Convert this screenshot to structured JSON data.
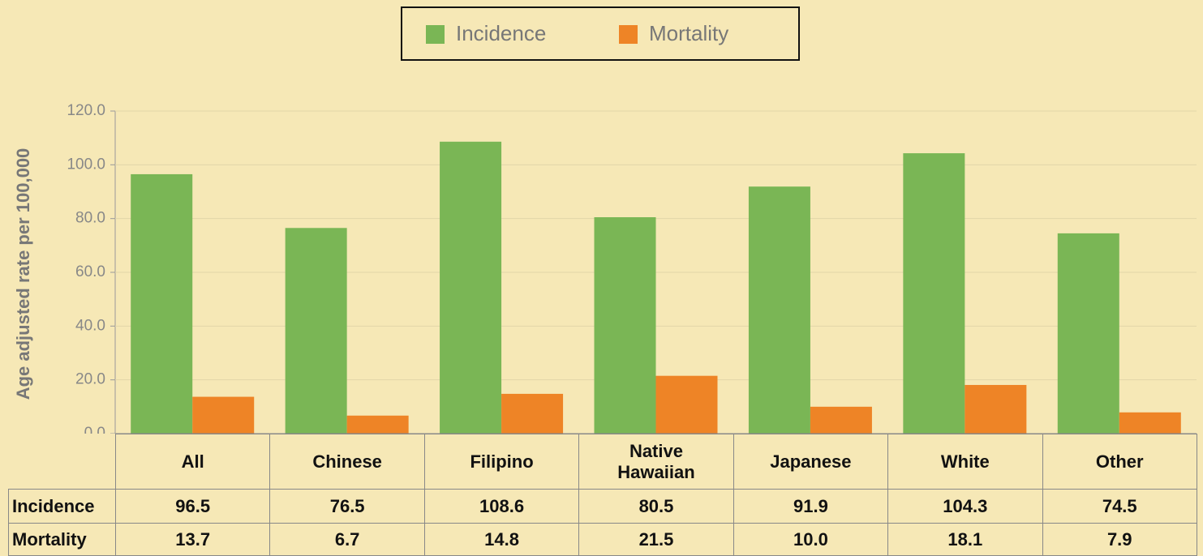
{
  "chart_data": {
    "type": "bar",
    "ylabel": "Age adjusted rate per 100,000",
    "categories": [
      "All",
      "Chinese",
      "Filipino",
      "Native Hawaiian",
      "Japanese",
      "White",
      "Other"
    ],
    "series": [
      {
        "name": "Incidence",
        "color": "#7ab655",
        "values": [
          96.5,
          76.5,
          108.6,
          80.5,
          91.9,
          104.3,
          74.5
        ]
      },
      {
        "name": "Mortality",
        "color": "#ee8426",
        "values": [
          13.7,
          6.7,
          14.8,
          21.5,
          10.0,
          18.1,
          7.9
        ],
        "value_labels": [
          "13.7",
          "6.7",
          "14.8",
          "21.5",
          "10.0",
          "18.1",
          "7.9"
        ]
      }
    ],
    "ylim": [
      0,
      120
    ],
    "yticks": [
      {
        "value": 0,
        "label": "0.0"
      },
      {
        "value": 20,
        "label": "20.0"
      },
      {
        "value": 40,
        "label": "40.0"
      },
      {
        "value": 60,
        "label": "60.0"
      },
      {
        "value": 80,
        "label": "80.0"
      },
      {
        "value": 100,
        "label": "100.0"
      },
      {
        "value": 120,
        "label": "120.0"
      }
    ],
    "legend": "top"
  }
}
